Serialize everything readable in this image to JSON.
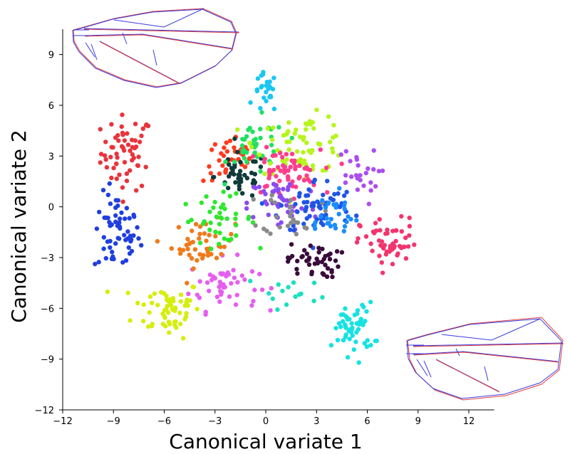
{
  "chart_data": {
    "type": "scatter",
    "title": "",
    "xlabel": "Canonical variate 1",
    "ylabel": "Canonical variate 2",
    "xlim": [
      -12,
      13.5
    ],
    "ylim": [
      -12,
      10.5
    ],
    "xticks": [
      -12,
      -9,
      -6,
      -3,
      0,
      3,
      6,
      9,
      12
    ],
    "yticks": [
      -12,
      -9,
      -6,
      -3,
      0,
      3,
      6,
      9
    ],
    "xtick_labels": [
      "−12",
      "−9",
      "−6",
      "−3",
      "0",
      "3",
      "6",
      "9",
      "12"
    ],
    "ytick_labels": [
      "−12",
      "−9",
      "−6",
      "−3",
      "0",
      "3",
      "6",
      "9"
    ],
    "grid": false,
    "legend": "none",
    "point_style": "filled circles",
    "insets": [
      "wing outline overlay (top-left)",
      "wing outline overlay (bottom-right)"
    ],
    "series": [
      {
        "color": "#e8343c",
        "center": [
          -8.2,
          3.2
        ],
        "spread": [
          0.9,
          1.3
        ],
        "n": 60
      },
      {
        "color": "#1f3fe0",
        "center": [
          -8.8,
          -1.6
        ],
        "spread": [
          0.8,
          1.4
        ],
        "n": 60
      },
      {
        "color": "#d6ee0e",
        "center": [
          -5.8,
          -6.0
        ],
        "spread": [
          1.2,
          1.0
        ],
        "n": 60
      },
      {
        "color": "#e55ef0",
        "center": [
          -2.5,
          -4.6
        ],
        "spread": [
          1.2,
          0.9
        ],
        "n": 50
      },
      {
        "color": "#f07a1a",
        "center": [
          -3.7,
          -2.2
        ],
        "spread": [
          1.1,
          0.8
        ],
        "n": 45
      },
      {
        "color": "#2ee82e",
        "center": [
          -2.8,
          -0.7
        ],
        "spread": [
          1.3,
          0.8
        ],
        "n": 40
      },
      {
        "color": "#ff3b1e",
        "center": [
          -2.0,
          2.8
        ],
        "spread": [
          1.0,
          0.8
        ],
        "n": 40
      },
      {
        "color": "#0f3a3a",
        "center": [
          -1.5,
          1.8
        ],
        "spread": [
          0.9,
          0.8
        ],
        "n": 40
      },
      {
        "color": "#18c7f2",
        "center": [
          0.0,
          6.7
        ],
        "spread": [
          0.4,
          0.7
        ],
        "n": 25
      },
      {
        "color": "#21e060",
        "center": [
          -0.5,
          3.5
        ],
        "spread": [
          1.0,
          1.0
        ],
        "n": 40
      },
      {
        "color": "#b5f51a",
        "center": [
          2.2,
          3.7
        ],
        "spread": [
          1.6,
          1.0
        ],
        "n": 70
      },
      {
        "color": "#ff3d8c",
        "center": [
          1.0,
          2.0
        ],
        "spread": [
          1.3,
          0.8
        ],
        "n": 60
      },
      {
        "color": "#8a4af0",
        "center": [
          1.0,
          0.2
        ],
        "spread": [
          1.2,
          1.0
        ],
        "n": 50
      },
      {
        "color": "#1f55e6",
        "center": [
          3.0,
          0.0
        ],
        "spread": [
          1.3,
          1.0
        ],
        "n": 60
      },
      {
        "color": "#8a8a8a",
        "center": [
          1.5,
          -0.3
        ],
        "spread": [
          1.0,
          0.8
        ],
        "n": 25
      },
      {
        "color": "#1a8cff",
        "center": [
          3.8,
          -0.5
        ],
        "spread": [
          1.0,
          0.8
        ],
        "n": 30
      },
      {
        "color": "#ab4ef0",
        "center": [
          5.3,
          1.8
        ],
        "spread": [
          0.8,
          1.0
        ],
        "n": 25
      },
      {
        "color": "#3a0b3a",
        "center": [
          2.8,
          -3.2
        ],
        "spread": [
          0.9,
          0.6
        ],
        "n": 45
      },
      {
        "color": "#f2356e",
        "center": [
          7.3,
          -2.2
        ],
        "spread": [
          1.0,
          0.9
        ],
        "n": 55
      },
      {
        "color": "#16e2e2",
        "center": [
          5.2,
          -7.2
        ],
        "spread": [
          0.7,
          0.9
        ],
        "n": 55
      },
      {
        "color": "#19e0c0",
        "center": [
          1.5,
          -5.0
        ],
        "spread": [
          1.5,
          0.6
        ],
        "n": 15
      }
    ]
  }
}
